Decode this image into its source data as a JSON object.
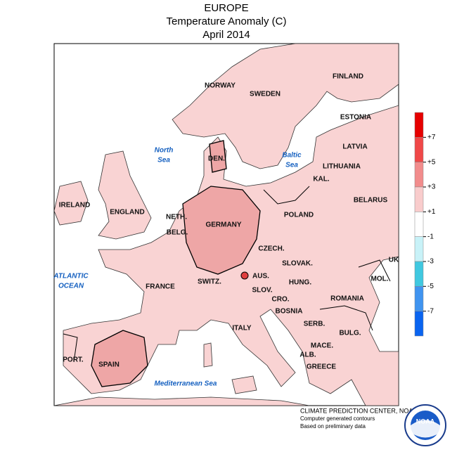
{
  "header": {
    "title": "EUROPE",
    "subtitle": "Temperature Anomaly (C)",
    "date": "April 2014"
  },
  "land_labels": [
    "NORWAY",
    "SWEDEN",
    "FINLAND",
    "ESTONIA",
    "LATVIA",
    "LITHUANIA",
    "KAL.",
    "DEN.",
    "IRELAND",
    "ENGLAND",
    "NETH.",
    "BELG.",
    "GERMANY",
    "POLAND",
    "BELARUS",
    "CZECH.",
    "SLOVAK.",
    "AUS.",
    "HUNG.",
    "SLOV.",
    "CRO.",
    "BOSNIA",
    "ROMANIA",
    "MOL.",
    "UK",
    "SERB.",
    "BULG.",
    "MACE.",
    "ALB.",
    "GREECE",
    "ITALY",
    "SWITZ.",
    "FRANCE",
    "SPAIN",
    "PORT."
  ],
  "sea_labels": [
    [
      "North",
      "Sea"
    ],
    [
      "Baltic",
      "Sea"
    ],
    [
      "ATLANTIC",
      "OCEAN"
    ],
    [
      "Mediterranean Sea"
    ]
  ],
  "legend": {
    "ticks": [
      "+7",
      "+5",
      "+3",
      "+1",
      "-1",
      "-3",
      "-5",
      "-7"
    ],
    "colors": [
      "#e60000",
      "#f04848",
      "#f28c8c",
      "#f9cccc",
      "#ffffff",
      "#c8f2f8",
      "#40c8e0",
      "#4094f0",
      "#0a64f0"
    ]
  },
  "footer": [
    "CLIMATE PREDICTION CENTER, NOAA",
    "Computer generated contours",
    "Based on preliminary data"
  ],
  "logo": "NOAA"
}
